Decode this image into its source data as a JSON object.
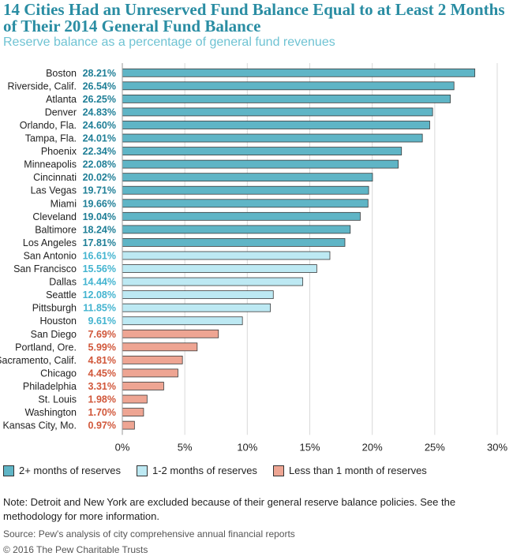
{
  "title": "14 Cities Had an Unreserved Fund Balance Equal to at Least 2 Months of Their 2014 General Fund Balance",
  "subtitle": "Reserve balance as a percentage of general fund revenues",
  "legend": [
    {
      "label": "2+ months of reserves",
      "color": "#5fb5c6",
      "text_color": "#1f7f97"
    },
    {
      "label": "1-2 months of reserves",
      "color": "#bde9f3",
      "text_color": "#43b4d0"
    },
    {
      "label": "Less than 1 month of reserves",
      "color": "#eea593",
      "text_color": "#d1573a"
    }
  ],
  "note": "Note: Detroit and New York are excluded because of their general reserve balance policies. See the methodology for more information.",
  "source": "Source: Pew's analysis of city comprehensive annual financial reports",
  "copyright": "© 2016 The Pew Charitable Trusts",
  "chart_data": {
    "type": "bar",
    "orientation": "horizontal",
    "xlim": [
      0,
      30
    ],
    "xticks": [
      "0%",
      "5%",
      "10%",
      "15%",
      "20%",
      "25%",
      "30%"
    ],
    "grid": true,
    "legend_position": "bottom",
    "bars": [
      {
        "city": "Boston",
        "value": 28.21,
        "label": "28.21%",
        "group": 0
      },
      {
        "city": "Riverside, Calif.",
        "value": 26.54,
        "label": "26.54%",
        "group": 0
      },
      {
        "city": "Atlanta",
        "value": 26.25,
        "label": "26.25%",
        "group": 0
      },
      {
        "city": "Denver",
        "value": 24.83,
        "label": "24.83%",
        "group": 0
      },
      {
        "city": "Orlando, Fla.",
        "value": 24.6,
        "label": "24.60%",
        "group": 0
      },
      {
        "city": "Tampa, Fla.",
        "value": 24.01,
        "label": "24.01%",
        "group": 0
      },
      {
        "city": "Phoenix",
        "value": 22.34,
        "label": "22.34%",
        "group": 0
      },
      {
        "city": "Minneapolis",
        "value": 22.08,
        "label": "22.08%",
        "group": 0
      },
      {
        "city": "Cincinnati",
        "value": 20.02,
        "label": "20.02%",
        "group": 0
      },
      {
        "city": "Las Vegas",
        "value": 19.71,
        "label": "19.71%",
        "group": 0
      },
      {
        "city": "Miami",
        "value": 19.66,
        "label": "19.66%",
        "group": 0
      },
      {
        "city": "Cleveland",
        "value": 19.04,
        "label": "19.04%",
        "group": 0
      },
      {
        "city": "Baltimore",
        "value": 18.24,
        "label": "18.24%",
        "group": 0
      },
      {
        "city": "Los Angeles",
        "value": 17.81,
        "label": "17.81%",
        "group": 0
      },
      {
        "city": "San Antonio",
        "value": 16.61,
        "label": "16.61%",
        "group": 1
      },
      {
        "city": "San Francisco",
        "value": 15.56,
        "label": "15.56%",
        "group": 1
      },
      {
        "city": "Dallas",
        "value": 14.44,
        "label": "14.44%",
        "group": 1
      },
      {
        "city": "Seattle",
        "value": 12.08,
        "label": "12.08%",
        "group": 1
      },
      {
        "city": "Pittsburgh",
        "value": 11.85,
        "label": "11.85%",
        "group": 1
      },
      {
        "city": "Houston",
        "value": 9.61,
        "label": "9.61%",
        "group": 1
      },
      {
        "city": "San Diego",
        "value": 7.69,
        "label": "7.69%",
        "group": 2
      },
      {
        "city": "Portland, Ore.",
        "value": 5.99,
        "label": "5.99%",
        "group": 2
      },
      {
        "city": "Sacramento, Calif.",
        "value": 4.81,
        "label": "4.81%",
        "group": 2
      },
      {
        "city": "Chicago",
        "value": 4.45,
        "label": "4.45%",
        "group": 2
      },
      {
        "city": "Philadelphia",
        "value": 3.31,
        "label": "3.31%",
        "group": 2
      },
      {
        "city": "St. Louis",
        "value": 1.98,
        "label": "1.98%",
        "group": 2
      },
      {
        "city": "Washington",
        "value": 1.7,
        "label": "1.70%",
        "group": 2
      },
      {
        "city": "Kansas City, Mo.",
        "value": 0.97,
        "label": "0.97%",
        "group": 2
      }
    ]
  }
}
